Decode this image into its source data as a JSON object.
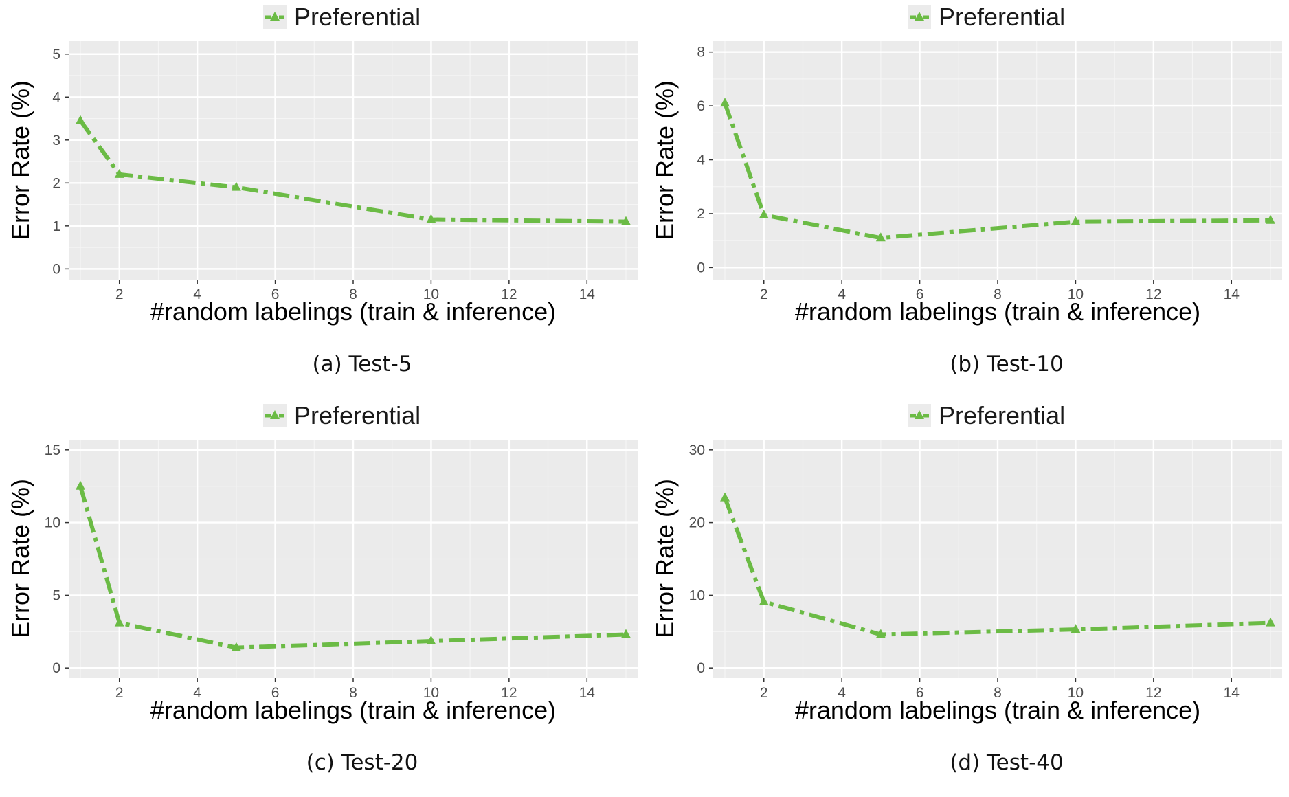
{
  "colors": {
    "series": "#6bbb45",
    "panel_bg": "#ebebeb",
    "grid_major": "#ffffff",
    "grid_minor": "#f5f5f5"
  },
  "chart_data": [
    {
      "type": "line",
      "caption": "(a) Test-5",
      "legend": [
        "Preferential"
      ],
      "xlabel": "#random labelings (train & inference)",
      "ylabel": "Error Rate (%)",
      "xlim": [
        0.7,
        15.3
      ],
      "ylim": [
        -0.25,
        5.3
      ],
      "xticks": [
        2,
        4,
        6,
        8,
        10,
        12,
        14
      ],
      "yticks": [
        0,
        1,
        2,
        3,
        4,
        5
      ],
      "grid": true,
      "series": [
        {
          "name": "Preferential",
          "x": [
            1,
            2,
            5,
            10,
            15
          ],
          "values": [
            3.45,
            2.2,
            1.9,
            1.15,
            1.1
          ]
        }
      ]
    },
    {
      "type": "line",
      "caption": "(b) Test-10",
      "legend": [
        "Preferential"
      ],
      "xlabel": "#random labelings (train & inference)",
      "ylabel": "Error Rate (%)",
      "xlim": [
        0.7,
        15.3
      ],
      "ylim": [
        -0.45,
        8.4
      ],
      "xticks": [
        2,
        4,
        6,
        8,
        10,
        12,
        14
      ],
      "yticks": [
        0,
        2,
        4,
        6,
        8
      ],
      "grid": true,
      "series": [
        {
          "name": "Preferential",
          "x": [
            1,
            2,
            5,
            10,
            15
          ],
          "values": [
            6.1,
            1.95,
            1.1,
            1.7,
            1.75
          ]
        }
      ]
    },
    {
      "type": "line",
      "caption": "(c) Test-20",
      "legend": [
        "Preferential"
      ],
      "xlabel": "#random labelings (train & inference)",
      "ylabel": "Error Rate (%)",
      "xlim": [
        0.7,
        15.3
      ],
      "ylim": [
        -0.7,
        15.7
      ],
      "xticks": [
        2,
        4,
        6,
        8,
        10,
        12,
        14
      ],
      "yticks": [
        0,
        5,
        10,
        15
      ],
      "grid": true,
      "series": [
        {
          "name": "Preferential",
          "x": [
            1,
            2,
            5,
            10,
            15
          ],
          "values": [
            12.5,
            3.1,
            1.4,
            1.85,
            2.3
          ]
        }
      ]
    },
    {
      "type": "line",
      "caption": "(d) Test-40",
      "legend": [
        "Preferential"
      ],
      "xlabel": "#random labelings (train & inference)",
      "ylabel": "Error Rate (%)",
      "xlim": [
        0.7,
        15.3
      ],
      "ylim": [
        -1.4,
        31.4
      ],
      "xticks": [
        2,
        4,
        6,
        8,
        10,
        12,
        14
      ],
      "yticks": [
        0,
        10,
        20,
        30
      ],
      "grid": true,
      "series": [
        {
          "name": "Preferential",
          "x": [
            1,
            2,
            5,
            10,
            15
          ],
          "values": [
            23.4,
            9.1,
            4.6,
            5.3,
            6.2
          ]
        }
      ]
    }
  ]
}
